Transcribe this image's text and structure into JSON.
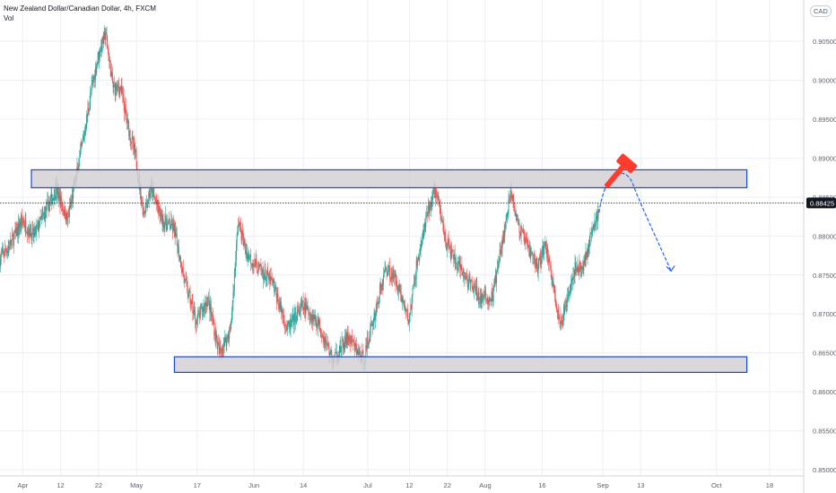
{
  "legend": {
    "title": "New Zealand Dollar/Canadian Dollar, 4h, FXCM",
    "volume_label": "Vol"
  },
  "currency": "CAD",
  "colors": {
    "up": "#26a69a",
    "down": "#ef5350",
    "zone_border": "#1848e0",
    "zone_fill": "#d3d1d4",
    "arrow": "#2962ff",
    "hammer": "#ff3b30",
    "price_tag_bg": "#131722",
    "gridline": "#eceff4"
  },
  "chart_data": {
    "type": "candlestick",
    "symbol": "NZD/CAD",
    "timeframe": "4h",
    "last_price": 0.88425,
    "last_price_label": "0.88425",
    "y_ticks": [
      0.905,
      0.9,
      0.895,
      0.89,
      0.885,
      0.88,
      0.875,
      0.87,
      0.865,
      0.86,
      0.855,
      0.85
    ],
    "y_tick_labels": [
      "0.90500",
      "0.90000",
      "0.89500",
      "0.89000",
      "0.88500",
      "0.88000",
      "0.87500",
      "0.87000",
      "0.86500",
      "0.86000",
      "0.85500",
      "0.85000"
    ],
    "ylim": [
      0.8492,
      0.9103
    ],
    "x_tick_labels": [
      "Apr",
      "12",
      "22",
      "May",
      "17",
      "Jun",
      "14",
      "Jul",
      "12",
      "22",
      "Aug",
      "16",
      "Sep",
      "13",
      "Oct",
      "18"
    ],
    "x_tick_days": [
      0,
      10,
      20,
      30,
      46,
      61,
      74,
      91,
      102,
      112,
      122,
      137,
      153,
      163,
      183,
      197
    ],
    "xlim": [
      -6,
      206
    ],
    "price_path": [
      [
        -6,
        0.877
      ],
      [
        -3,
        0.879
      ],
      [
        0,
        0.882
      ],
      [
        3,
        0.88
      ],
      [
        6,
        0.883
      ],
      [
        9,
        0.886
      ],
      [
        12,
        0.882
      ],
      [
        14,
        0.887
      ],
      [
        16,
        0.892
      ],
      [
        18,
        0.898
      ],
      [
        20,
        0.903
      ],
      [
        22,
        0.906
      ],
      [
        24,
        0.899
      ],
      [
        26,
        0.899
      ],
      [
        28,
        0.894
      ],
      [
        30,
        0.89
      ],
      [
        32,
        0.883
      ],
      [
        34,
        0.886
      ],
      [
        37,
        0.882
      ],
      [
        40,
        0.881
      ],
      [
        43,
        0.874
      ],
      [
        46,
        0.869
      ],
      [
        49,
        0.872
      ],
      [
        52,
        0.865
      ],
      [
        55,
        0.868
      ],
      [
        57,
        0.882
      ],
      [
        59,
        0.878
      ],
      [
        62,
        0.876
      ],
      [
        66,
        0.874
      ],
      [
        70,
        0.868
      ],
      [
        74,
        0.871
      ],
      [
        78,
        0.869
      ],
      [
        82,
        0.864
      ],
      [
        86,
        0.867
      ],
      [
        90,
        0.864
      ],
      [
        93,
        0.87
      ],
      [
        96,
        0.876
      ],
      [
        99,
        0.874
      ],
      [
        102,
        0.869
      ],
      [
        104,
        0.876
      ],
      [
        107,
        0.883
      ],
      [
        109,
        0.886
      ],
      [
        112,
        0.879
      ],
      [
        115,
        0.876
      ],
      [
        118,
        0.874
      ],
      [
        121,
        0.872
      ],
      [
        124,
        0.872
      ],
      [
        127,
        0.88
      ],
      [
        129,
        0.886
      ],
      [
        131,
        0.881
      ],
      [
        133,
        0.879
      ],
      [
        136,
        0.876
      ],
      [
        138,
        0.879
      ],
      [
        140,
        0.874
      ],
      [
        142,
        0.868
      ],
      [
        144,
        0.873
      ],
      [
        146,
        0.876
      ],
      [
        148,
        0.876
      ],
      [
        150,
        0.88
      ],
      [
        152,
        0.883
      ]
    ],
    "resistance_zone": {
      "low": 0.8862,
      "high": 0.8885,
      "x_start": -6,
      "x_end": 191
    },
    "support_zone": {
      "low": 0.8625,
      "high": 0.8645,
      "x_start": 40,
      "x_end": 191
    },
    "forecast_path": [
      [
        152,
        0.883
      ],
      [
        157,
        0.8875
      ],
      [
        161,
        0.8866
      ],
      [
        167,
        0.88
      ],
      [
        171,
        0.8755
      ]
    ],
    "volume_baseline": 0.8505,
    "volume_max_height": 0.0108
  }
}
